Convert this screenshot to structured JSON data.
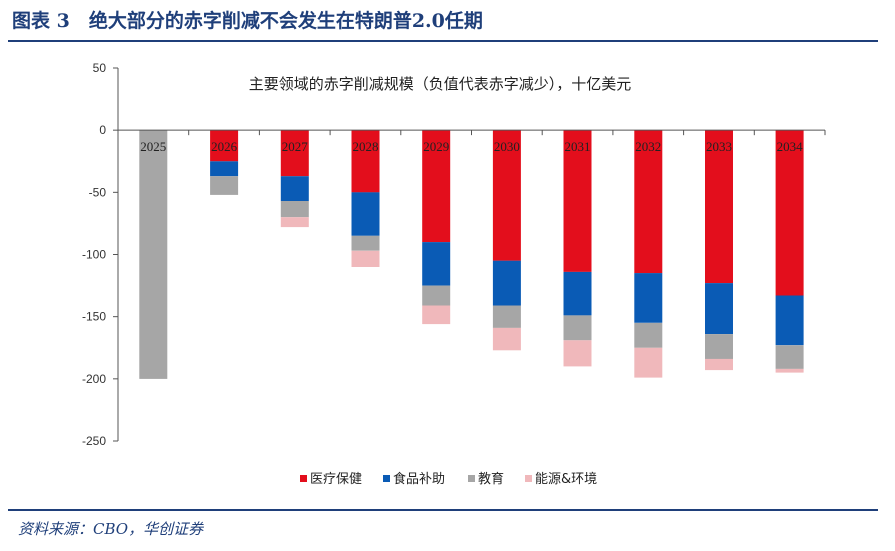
{
  "figure": {
    "title": "图表 3　绝大部分的赤字削减不会发生在特朗普2.0任期",
    "source": "资料来源：CBO，华创证券"
  },
  "chart_data": {
    "type": "bar",
    "stacked": true,
    "title": "主要领域的赤字削减规模（负值代表赤字减少），十亿美元",
    "xlabel": "",
    "ylabel": "",
    "ylim": [
      -250,
      50
    ],
    "yticks": [
      50,
      0,
      -50,
      -100,
      -150,
      -200,
      -250
    ],
    "categories": [
      "2025",
      "2026",
      "2027",
      "2028",
      "2029",
      "2030",
      "2031",
      "2032",
      "2033",
      "2034"
    ],
    "series": [
      {
        "name": "医疗保健",
        "color": "#e30e1c",
        "values": [
          0,
          -25,
          -37,
          -50,
          -90,
          -105,
          -114,
          -115,
          -123,
          -133
        ]
      },
      {
        "name": "食品补助",
        "color": "#0a5bb5",
        "values": [
          0,
          -12,
          -20,
          -35,
          -35,
          -36,
          -35,
          -40,
          -41,
          -40
        ]
      },
      {
        "name": "教育",
        "color": "#a6a6a6",
        "values": [
          -200,
          -15,
          -13,
          -12,
          -16,
          -18,
          -20,
          -20,
          -20,
          -19
        ]
      },
      {
        "name": "能源&环境",
        "color": "#f0b8bb",
        "values": [
          0,
          0,
          -8,
          -13,
          -15,
          -18,
          -21,
          -24,
          -9,
          -3
        ]
      }
    ],
    "grid": false,
    "legend_position": "bottom"
  }
}
